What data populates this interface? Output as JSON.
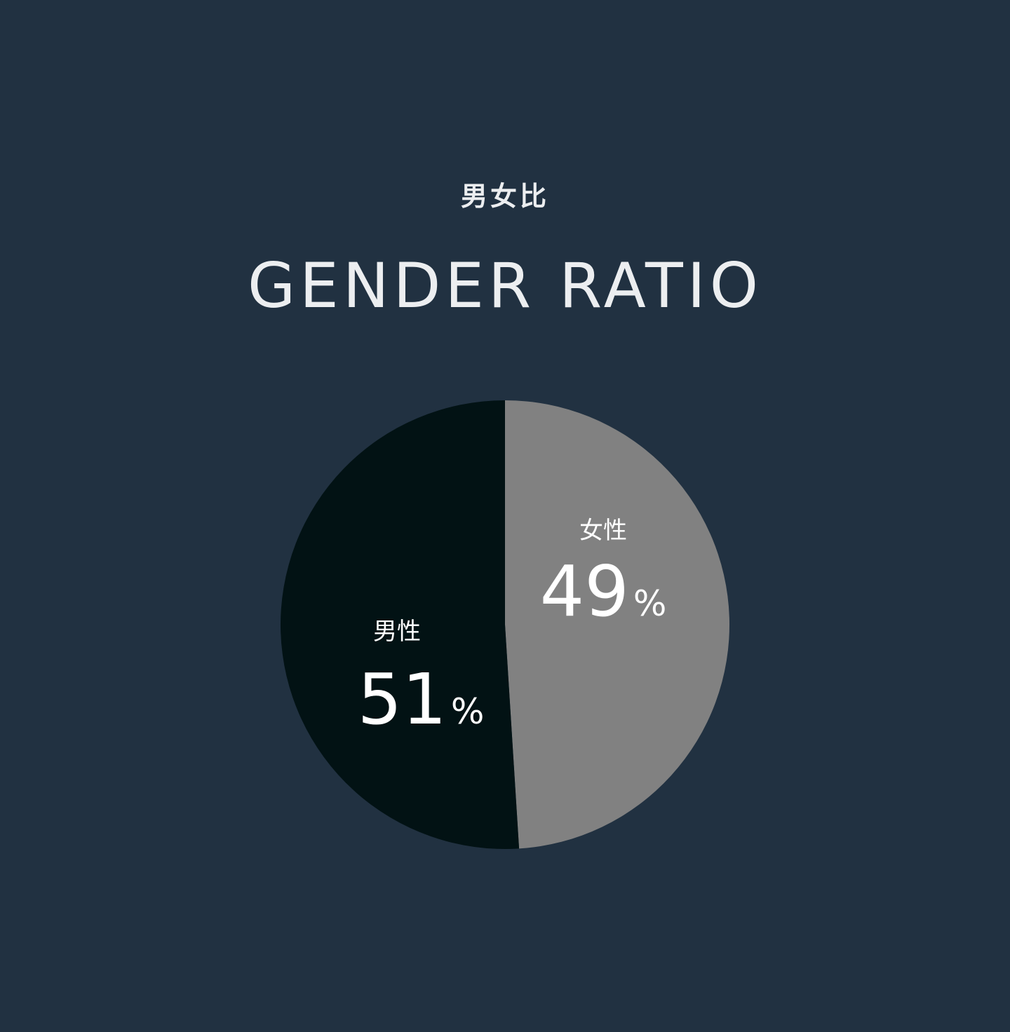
{
  "heading": {
    "ja": "男女比",
    "en": "GENDER RATIO"
  },
  "colors": {
    "background": "#213141",
    "male": "#021214",
    "female": "#818181",
    "text": "#ffffff"
  },
  "chart_data": {
    "type": "pie",
    "categories": [
      "女性",
      "男性"
    ],
    "values": [
      49,
      51
    ],
    "unit": "%",
    "slices": [
      {
        "label": "女性",
        "value": 49,
        "value_text": "49",
        "unit": "%",
        "color": "#818181"
      },
      {
        "label": "男性",
        "value": 51,
        "value_text": "51",
        "unit": "%",
        "color": "#021214"
      }
    ]
  }
}
